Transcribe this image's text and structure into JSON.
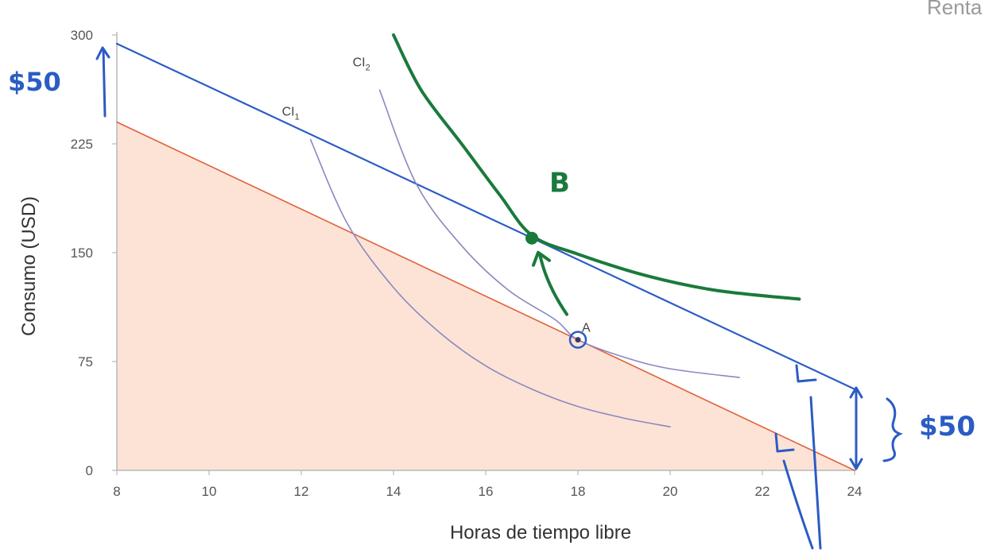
{
  "corner_text": "Renta",
  "chart_data": {
    "type": "line",
    "xlabel": "Horas de tiempo libre",
    "ylabel": "Consumo (USD)",
    "xlim": [
      8,
      24
    ],
    "ylim": [
      0,
      300
    ],
    "x_ticks": [
      "8",
      "10",
      "12",
      "14",
      "16",
      "18",
      "20",
      "22",
      "24"
    ],
    "y_ticks": [
      "0",
      "75",
      "150",
      "225",
      "300"
    ],
    "grid": false,
    "colors": {
      "original_budget": "#e0603a",
      "budget_fill": "#fde3d6",
      "new_budget": "#2b5cc4",
      "indifference": "#8a88c0",
      "handwritten_green": "#1a7a3c",
      "handwritten_blue": "#2b5cc4",
      "axis": "#b8b8b8"
    },
    "series": [
      {
        "points": [
          [
            8,
            240
          ],
          [
            24,
            0
          ]
        ]
      },
      {
        "points": [
          [
            8,
            294
          ],
          [
            24,
            56
          ]
        ]
      },
      {
        "label_main": "CI",
        "label_sub": "1",
        "points": [
          [
            12.2,
            228
          ],
          [
            13,
            170
          ],
          [
            14,
            126
          ],
          [
            15,
            95
          ],
          [
            16,
            72
          ],
          [
            17,
            56
          ],
          [
            18,
            44
          ],
          [
            19,
            36
          ],
          [
            20,
            30
          ]
        ]
      },
      {
        "label_main": "CI",
        "label_sub": "2",
        "points": [
          [
            13.7,
            262
          ],
          [
            14.5,
            197
          ],
          [
            15.5,
            154
          ],
          [
            16.5,
            124
          ],
          [
            17.5,
            104
          ],
          [
            18,
            90
          ],
          [
            19,
            78
          ],
          [
            20,
            70
          ],
          [
            21.5,
            64
          ]
        ]
      },
      {
        "points": [
          [
            14,
            300
          ],
          [
            14.6,
            262
          ],
          [
            15.5,
            224
          ],
          [
            16.3,
            190
          ],
          [
            17,
            162
          ],
          [
            18,
            149
          ],
          [
            19.5,
            134
          ],
          [
            21,
            124
          ],
          [
            22.8,
            118
          ]
        ]
      }
    ],
    "points": [
      {
        "label": "A",
        "x": 18,
        "y": 90
      },
      {
        "label": "B",
        "x": 17,
        "y": 160
      }
    ],
    "annotations": [
      "$50",
      "$50"
    ]
  }
}
